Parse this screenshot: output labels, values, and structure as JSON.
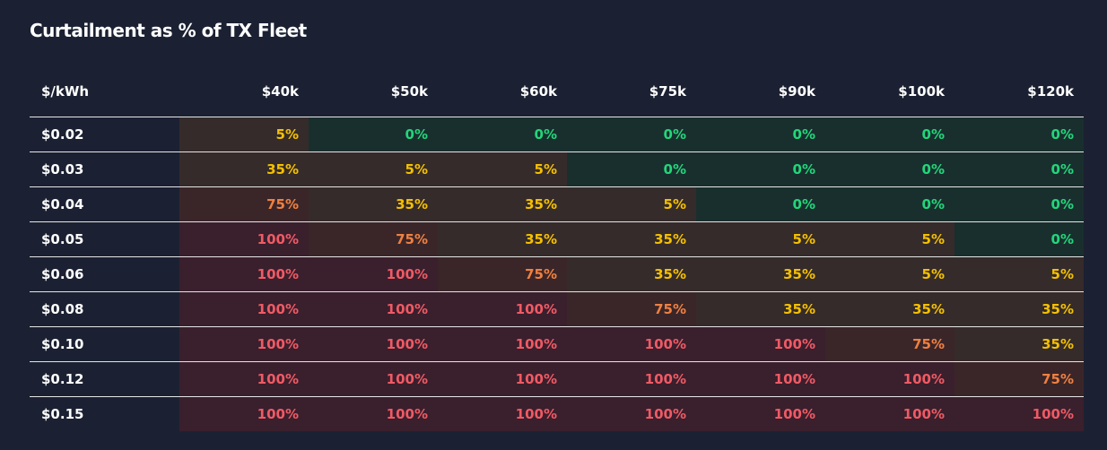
{
  "title": "Curtailment as % of TX Fleet",
  "corner_label": "$/kWh",
  "columns": [
    "$40k",
    "$50k",
    "$60k",
    "$75k",
    "$90k",
    "$100k",
    "$120k"
  ],
  "rows": [
    {
      "label": "$0.02",
      "values": [
        5,
        0,
        0,
        0,
        0,
        0,
        0
      ]
    },
    {
      "label": "$0.03",
      "values": [
        35,
        5,
        5,
        0,
        0,
        0,
        0
      ]
    },
    {
      "label": "$0.04",
      "values": [
        75,
        35,
        35,
        5,
        0,
        0,
        0
      ]
    },
    {
      "label": "$0.05",
      "values": [
        100,
        75,
        35,
        35,
        5,
        5,
        0
      ]
    },
    {
      "label": "$0.06",
      "values": [
        100,
        100,
        75,
        35,
        35,
        5,
        5
      ]
    },
    {
      "label": "$0.08",
      "values": [
        100,
        100,
        100,
        75,
        35,
        35,
        35
      ]
    },
    {
      "label": "$0.10",
      "values": [
        100,
        100,
        100,
        100,
        100,
        75,
        35
      ]
    },
    {
      "label": "$0.12",
      "values": [
        100,
        100,
        100,
        100,
        100,
        100,
        75
      ]
    },
    {
      "label": "$0.15",
      "values": [
        100,
        100,
        100,
        100,
        100,
        100,
        100
      ]
    }
  ],
  "colors": {
    "0": "#22d67a",
    "5": "#f5c000",
    "35": "#f5c000",
    "75": "#f08040",
    "100": "#f05a64"
  }
}
